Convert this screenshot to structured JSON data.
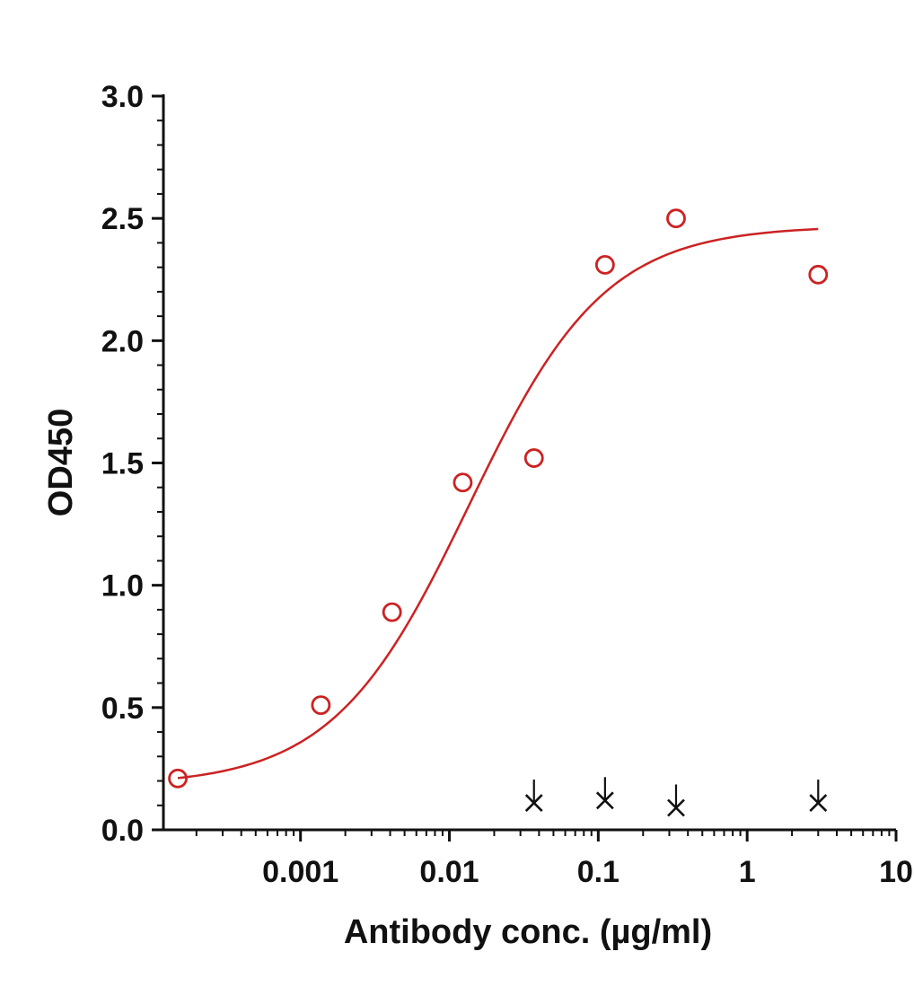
{
  "chart_data": {
    "type": "scatter",
    "xlabel": "Antibody conc. (µg/ml)",
    "ylabel": "OD450",
    "x_scale": "log",
    "xlim": [
      0.00012,
      10
    ],
    "ylim": [
      0,
      3.0
    ],
    "x_ticks": [
      {
        "value": 0.001,
        "label": "0.001"
      },
      {
        "value": 0.01,
        "label": "0.01"
      },
      {
        "value": 0.1,
        "label": "0.1"
      },
      {
        "value": 1,
        "label": "1"
      },
      {
        "value": 10,
        "label": "10"
      }
    ],
    "y_ticks": [
      {
        "value": 0.0,
        "label": "0.0"
      },
      {
        "value": 0.5,
        "label": "0.5"
      },
      {
        "value": 1.0,
        "label": "1.0"
      },
      {
        "value": 1.5,
        "label": "1.5"
      },
      {
        "value": 2.0,
        "label": "2.0"
      },
      {
        "value": 2.5,
        "label": "2.5"
      },
      {
        "value": 3.0,
        "label": "3.0"
      }
    ],
    "grid": false,
    "legend": "none",
    "series": [
      {
        "marker": "open-circle",
        "color": "#cc2222",
        "x": [
          0.00015,
          0.00137,
          0.00412,
          0.0123,
          0.037,
          0.111,
          0.333,
          3.0
        ],
        "y": [
          0.21,
          0.51,
          0.89,
          1.42,
          1.52,
          2.31,
          2.5,
          2.27
        ],
        "fit": {
          "model": "4PL",
          "color": "#cc2222",
          "bottom": 0.18,
          "top": 2.47,
          "ec50": 0.0135,
          "hill": 0.95,
          "x_range": [
            0.00015,
            3.0
          ]
        }
      },
      {
        "marker": "x",
        "color": "#111111",
        "x": [
          0.037,
          0.111,
          0.333,
          3.0
        ],
        "y": [
          0.11,
          0.12,
          0.09,
          0.11
        ]
      }
    ]
  }
}
